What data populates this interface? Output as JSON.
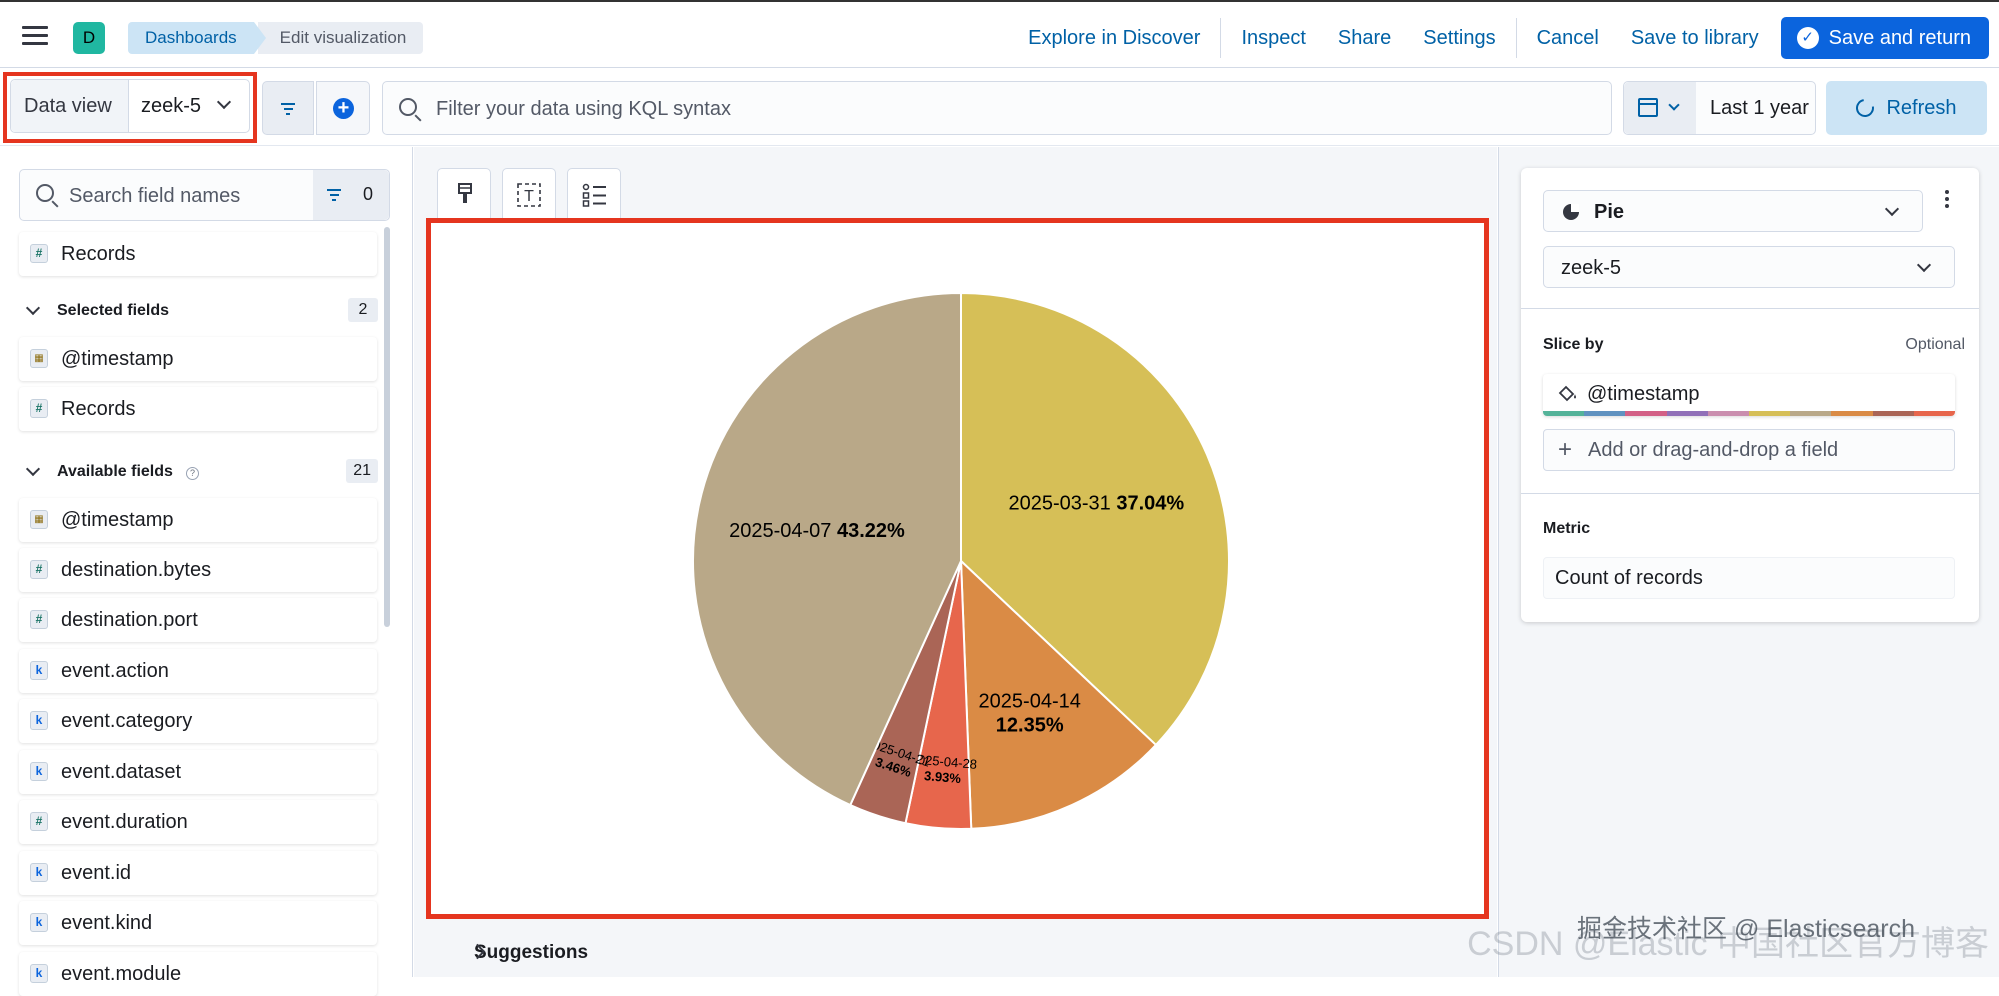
{
  "header": {
    "space_initial": "D",
    "breadcrumbs": [
      "Dashboards",
      "Edit visualization"
    ],
    "links": {
      "explore": "Explore in Discover",
      "inspect": "Inspect",
      "share": "Share",
      "settings": "Settings",
      "cancel": "Cancel",
      "save_library": "Save to library",
      "save_return": "Save and return"
    }
  },
  "querybar": {
    "data_view_label": "Data view",
    "data_view_value": "zeek-5",
    "kql_placeholder": "Filter your data using KQL syntax",
    "date_range": "Last 1 year",
    "refresh_label": "Refresh"
  },
  "field_list": {
    "search_placeholder": "Search field names",
    "filter_count": "0",
    "records_label": "Records",
    "selected_title": "Selected fields",
    "selected_count": "2",
    "selected_fields": [
      {
        "type": "date",
        "name": "@timestamp"
      },
      {
        "type": "number",
        "name": "Records"
      }
    ],
    "available_title": "Available fields",
    "available_count": "21",
    "available_fields": [
      {
        "type": "date",
        "name": "@timestamp"
      },
      {
        "type": "number",
        "name": "destination.bytes"
      },
      {
        "type": "number",
        "name": "destination.port"
      },
      {
        "type": "keyword",
        "name": "event.action"
      },
      {
        "type": "keyword",
        "name": "event.category"
      },
      {
        "type": "keyword",
        "name": "event.dataset"
      },
      {
        "type": "number",
        "name": "event.duration"
      },
      {
        "type": "keyword",
        "name": "event.id"
      },
      {
        "type": "keyword",
        "name": "event.kind"
      },
      {
        "type": "keyword",
        "name": "event.module"
      }
    ]
  },
  "workspace": {
    "suggestions_label": "Suggestions"
  },
  "config": {
    "chart_type": "Pie",
    "data_view": "zeek-5",
    "slice_by_title": "Slice by",
    "optional_label": "Optional",
    "slice_field": "@timestamp",
    "add_field_label": "Add or drag-and-drop a field",
    "metric_title": "Metric",
    "metric_value": "Count of records",
    "palette": [
      "#54b399",
      "#6092c0",
      "#d36086",
      "#9170b8",
      "#ca8eae",
      "#d6bf57",
      "#b9a888",
      "#da8b45",
      "#aa6556",
      "#e7664c"
    ]
  },
  "watermark": {
    "line1": "掘金技术社区 @ Elasticsearch",
    "line2": "CSDN @Elastic 中国社区官方博客"
  },
  "chart_data": {
    "type": "pie",
    "series": [
      {
        "name": "",
        "categories": [
          "2025-03-31",
          "2025-04-14",
          "2025-04-28",
          "2025-04-21",
          "2025-04-07"
        ],
        "values": [
          37.04,
          12.35,
          3.93,
          3.46,
          43.22
        ],
        "labels": [
          "37.04%",
          "12.35%",
          "3.93%",
          "3.46%",
          "43.22%"
        ],
        "colors": [
          "#d6bf57",
          "#da8b45",
          "#e7664c",
          "#aa6556",
          "#b9a888"
        ]
      }
    ]
  }
}
